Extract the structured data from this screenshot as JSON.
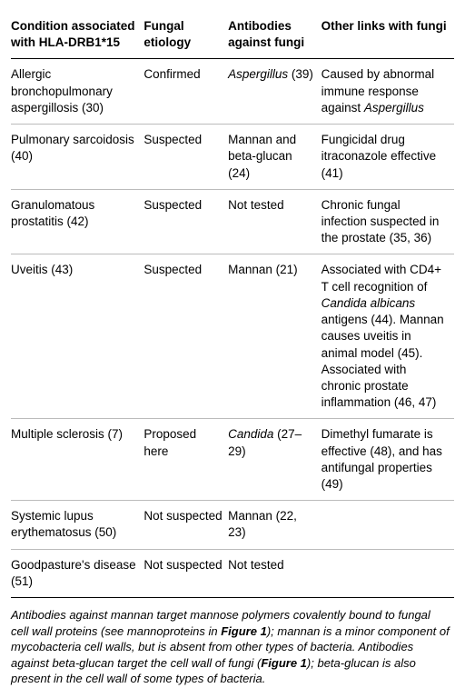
{
  "table": {
    "columns": [
      "Condition associated with HLA-DRB1*15",
      "Fungal etiology",
      "Antibodies against fungi",
      "Other links with fungi"
    ],
    "rows": [
      {
        "condition_html": "Allergic bronchopulmonary aspergillosis (30)",
        "etiology_html": "Confirmed",
        "antibodies_html": "<em>Aspergillus</em> (39)",
        "other_html": "Caused by abnormal immune response against <em>Aspergillus</em>"
      },
      {
        "condition_html": "Pulmonary sarcoidosis (40)",
        "etiology_html": "Suspected",
        "antibodies_html": "Mannan and beta-glucan (24)",
        "other_html": "Fungicidal drug itraconazole effective (41)"
      },
      {
        "condition_html": "Granulomatous prostatitis (42)",
        "etiology_html": "Suspected",
        "antibodies_html": "Not tested",
        "other_html": "Chronic fungal infection suspected in the prostate (35, 36)"
      },
      {
        "condition_html": "Uveitis (43)",
        "etiology_html": "Suspected",
        "antibodies_html": "Mannan (21)",
        "other_html": "Associated with CD4+ T cell recognition of <em>Candida albicans</em> antigens (44). Mannan causes uveitis in animal model (45). Associated with chronic prostate inflammation (46, 47)"
      },
      {
        "condition_html": "Multiple sclerosis (7)",
        "etiology_html": "Proposed here",
        "antibodies_html": "<em>Candida</em> (27–29)",
        "other_html": "Dimethyl fumarate is effective (48), and has antifungal properties (49)"
      },
      {
        "condition_html": "Systemic lupus erythematosus (50)",
        "etiology_html": "Not suspected",
        "antibodies_html": "Mannan (22, 23)",
        "other_html": ""
      },
      {
        "condition_html": "Goodpasture's disease (51)",
        "etiology_html": "Not suspected",
        "antibodies_html": "Not tested",
        "other_html": ""
      }
    ]
  },
  "footnote_html": "Antibodies against mannan target mannose polymers covalently bound to fungal cell wall proteins (see mannoproteins in <b>Figure 1</b>); mannan is a minor component of mycobacteria cell walls, but is absent from other types of bacteria. Antibodies against beta-glucan target the cell wall of fungi (<b>Figure 1</b>); beta-glucan is also present in the cell wall of some types of bacteria."
}
